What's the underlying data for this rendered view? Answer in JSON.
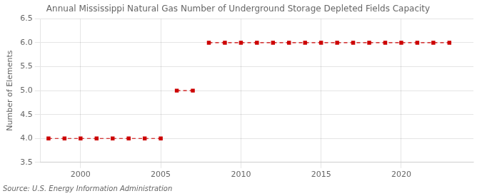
{
  "chart_data": {
    "type": "line",
    "title": "Annual Mississippi Natural Gas Number of Underground Storage Depleted Fields Capacity",
    "ylabel": "Number of Elements",
    "source": "Source: U.S. Energy Information Administration",
    "x": [
      1998,
      1999,
      2000,
      2001,
      2002,
      2003,
      2004,
      2005,
      2006,
      2007,
      2008,
      2009,
      2010,
      2011,
      2012,
      2013,
      2014,
      2015,
      2016,
      2017,
      2018,
      2019,
      2020,
      2021,
      2022,
      2023
    ],
    "series": [
      {
        "color": "#cc0000",
        "marker": "square",
        "line_style": "dashed",
        "values": [
          4,
          4,
          4,
          4,
          4,
          4,
          4,
          4,
          null,
          null,
          null,
          null,
          null,
          null,
          null,
          null,
          null,
          null,
          null,
          null,
          null,
          null,
          null,
          null,
          null,
          null
        ]
      },
      {
        "color": "#cc0000",
        "marker": "square",
        "line_style": "dashed",
        "values": [
          null,
          null,
          null,
          null,
          null,
          null,
          null,
          null,
          5,
          5,
          null,
          null,
          null,
          null,
          null,
          null,
          null,
          null,
          null,
          null,
          null,
          null,
          null,
          null,
          null,
          null
        ]
      },
      {
        "color": "#cc0000",
        "marker": "square",
        "line_style": "dashed",
        "values": [
          null,
          null,
          null,
          null,
          null,
          null,
          null,
          null,
          null,
          null,
          6,
          6,
          6,
          6,
          6,
          6,
          6,
          6,
          6,
          6,
          6,
          6,
          6,
          6,
          6,
          6
        ]
      }
    ],
    "xlim": [
      1997.5,
      2024.5
    ],
    "xticks": [
      2000,
      2005,
      2010,
      2015,
      2020
    ],
    "ylim": [
      3.5,
      6.5
    ],
    "yticks": [
      3.5,
      {
        "value": 4.0,
        "label": "4.0"
      },
      4.5,
      {
        "value": 5.0,
        "label": "5.0"
      },
      5.5,
      {
        "value": 6.0,
        "label": "6.0"
      },
      6.5
    ],
    "grid": true
  }
}
